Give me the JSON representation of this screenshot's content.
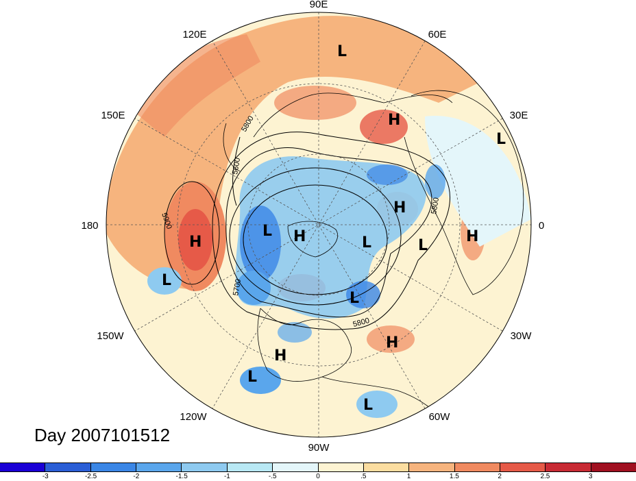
{
  "title": "Day 2007101512",
  "longitude_labels": [
    "90E",
    "60E",
    "30E",
    "0",
    "30W",
    "60W",
    "90W",
    "120W",
    "150W",
    "180",
    "150E",
    "120E"
  ],
  "contour_labels": [
    "5800",
    "5600",
    "5900",
    "5700",
    "5800",
    "5800"
  ],
  "pressure_centers": [
    {
      "type": "L"
    },
    {
      "type": "H"
    },
    {
      "type": "L"
    },
    {
      "type": "H"
    },
    {
      "type": "H"
    },
    {
      "type": "L"
    },
    {
      "type": "H"
    },
    {
      "type": "L"
    },
    {
      "type": "L"
    },
    {
      "type": "H"
    },
    {
      "type": "H"
    },
    {
      "type": "L"
    },
    {
      "type": "L"
    },
    {
      "type": "H"
    },
    {
      "type": "L"
    }
  ],
  "colorbar": {
    "colors": [
      "#1a00d6",
      "#2a5ed6",
      "#3a86e6",
      "#5aa6ec",
      "#8ecaf0",
      "#b8e8f4",
      "#e4f6fa",
      "#fdf3d2",
      "#fbdda0",
      "#f6b47e",
      "#f08a60",
      "#e65a48",
      "#c82a34",
      "#a01020"
    ],
    "labels": [
      "-3",
      "-2.5",
      "-2",
      "-1.5",
      "-1",
      "-.5",
      "0",
      ".5",
      "1",
      "1.5",
      "2",
      "2.5",
      "3"
    ]
  }
}
